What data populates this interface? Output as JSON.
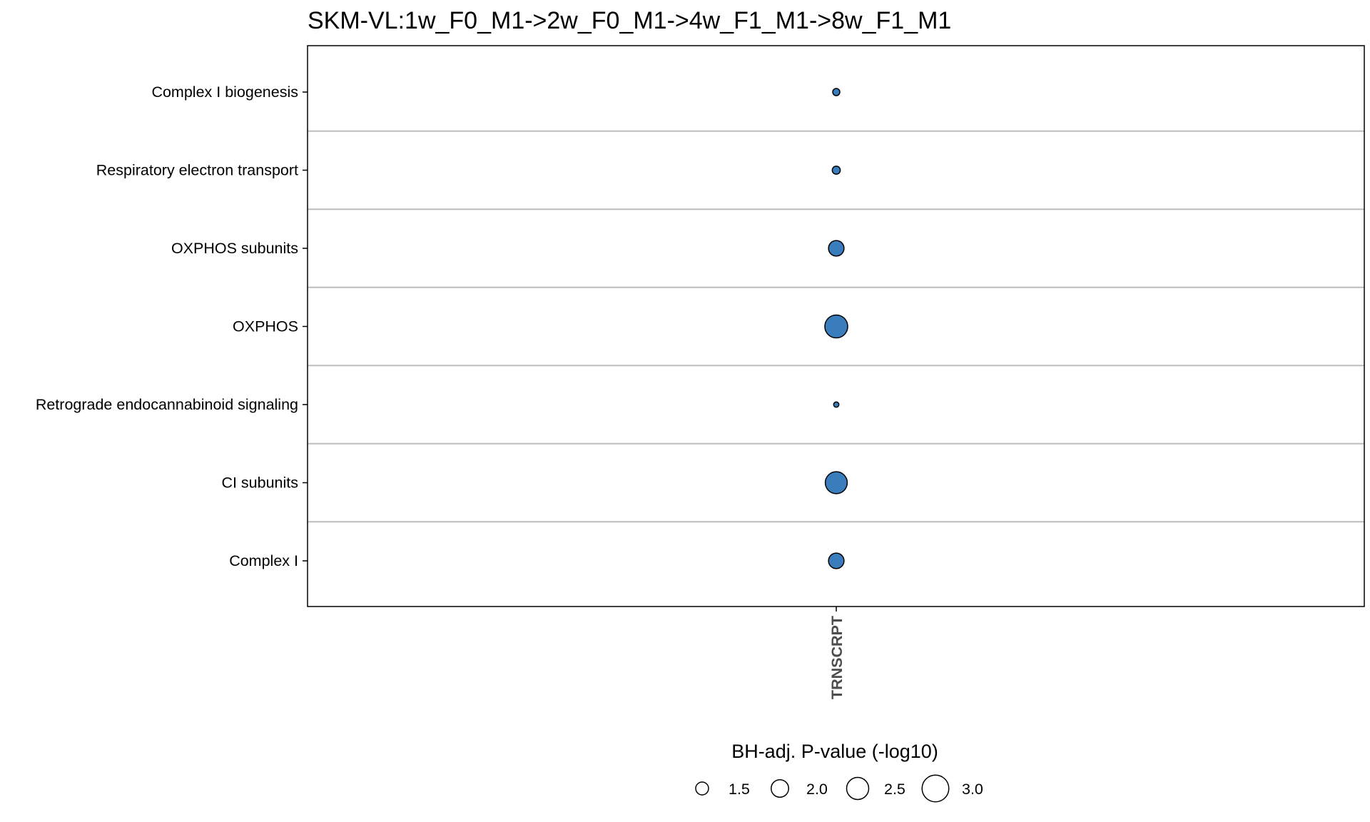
{
  "chart_data": {
    "type": "scatter",
    "title": "SKM-VL:1w_F0_M1->2w_F0_M1->4w_F1_M1->8w_F1_M1",
    "x": [
      "TRNSCRPT"
    ],
    "categories": [
      "Complex I biogenesis",
      "Respiratory electron transport",
      "OXPHOS subunits",
      "OXPHOS",
      "Retrograde endocannabinoid signaling",
      "CI subunits",
      "Complex I"
    ],
    "points": [
      {
        "category": "Complex I biogenesis",
        "x": "TRNSCRPT",
        "size_value": 1.5
      },
      {
        "category": "Respiratory electron transport",
        "x": "TRNSCRPT",
        "size_value": 1.6
      },
      {
        "category": "OXPHOS subunits",
        "x": "TRNSCRPT",
        "size_value": 2.4
      },
      {
        "category": "OXPHOS",
        "x": "TRNSCRPT",
        "size_value": 3.2
      },
      {
        "category": "Retrograde endocannabinoid signaling",
        "x": "TRNSCRPT",
        "size_value": 1.3
      },
      {
        "category": "CI subunits",
        "x": "TRNSCRPT",
        "size_value": 3.1
      },
      {
        "category": "Complex I",
        "x": "TRNSCRPT",
        "size_value": 2.4
      }
    ],
    "xlabel": "",
    "ylabel": "",
    "size_legend": {
      "title": "BH-adj. P-value (-log10)",
      "values": [
        1.5,
        2.0,
        2.5,
        3.0
      ],
      "labels": [
        "1.5",
        "2.0",
        "2.5",
        "3.0"
      ],
      "placement": "bottom"
    },
    "grid": "horizontal",
    "colors": {
      "point_fill": "#3a7dbd",
      "point_stroke": "#000000",
      "grid": "#bdbdbd",
      "panel_border": "#000000"
    }
  }
}
